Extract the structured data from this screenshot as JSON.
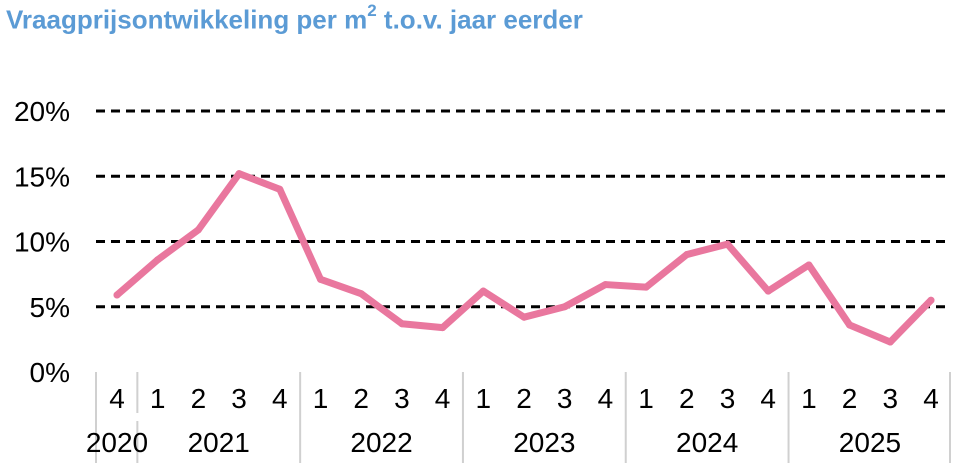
{
  "chart_data": {
    "type": "line",
    "title": {
      "main": "Vraagprijsontwikkeling per m",
      "superscript": "2",
      "rest": " t.o.v. jaar eerder"
    },
    "yticks": [
      "0%",
      "5%",
      "10%",
      "15%",
      "20%"
    ],
    "ylim": [
      0,
      20
    ],
    "grid": "dashed horizontal",
    "quarters": [
      "4",
      "1",
      "2",
      "3",
      "4",
      "1",
      "2",
      "3",
      "4",
      "1",
      "2",
      "3",
      "4",
      "1",
      "2",
      "3",
      "4",
      "1",
      "2",
      "3",
      "4"
    ],
    "years": [
      {
        "label": "2020",
        "quarters": 1
      },
      {
        "label": "2021",
        "quarters": 4
      },
      {
        "label": "2022",
        "quarters": 4
      },
      {
        "label": "2023",
        "quarters": 4
      },
      {
        "label": "2024",
        "quarters": 4
      },
      {
        "label": "2025",
        "quarters": 4
      }
    ],
    "series": [
      {
        "color": "#E9779E",
        "values": [
          5.9,
          8.6,
          10.9,
          15.2,
          14.0,
          7.1,
          6.0,
          3.7,
          3.4,
          6.2,
          4.2,
          5.0,
          6.7,
          6.5,
          9.0,
          9.8,
          6.2,
          8.2,
          3.6,
          2.3,
          5.5
        ]
      }
    ]
  }
}
